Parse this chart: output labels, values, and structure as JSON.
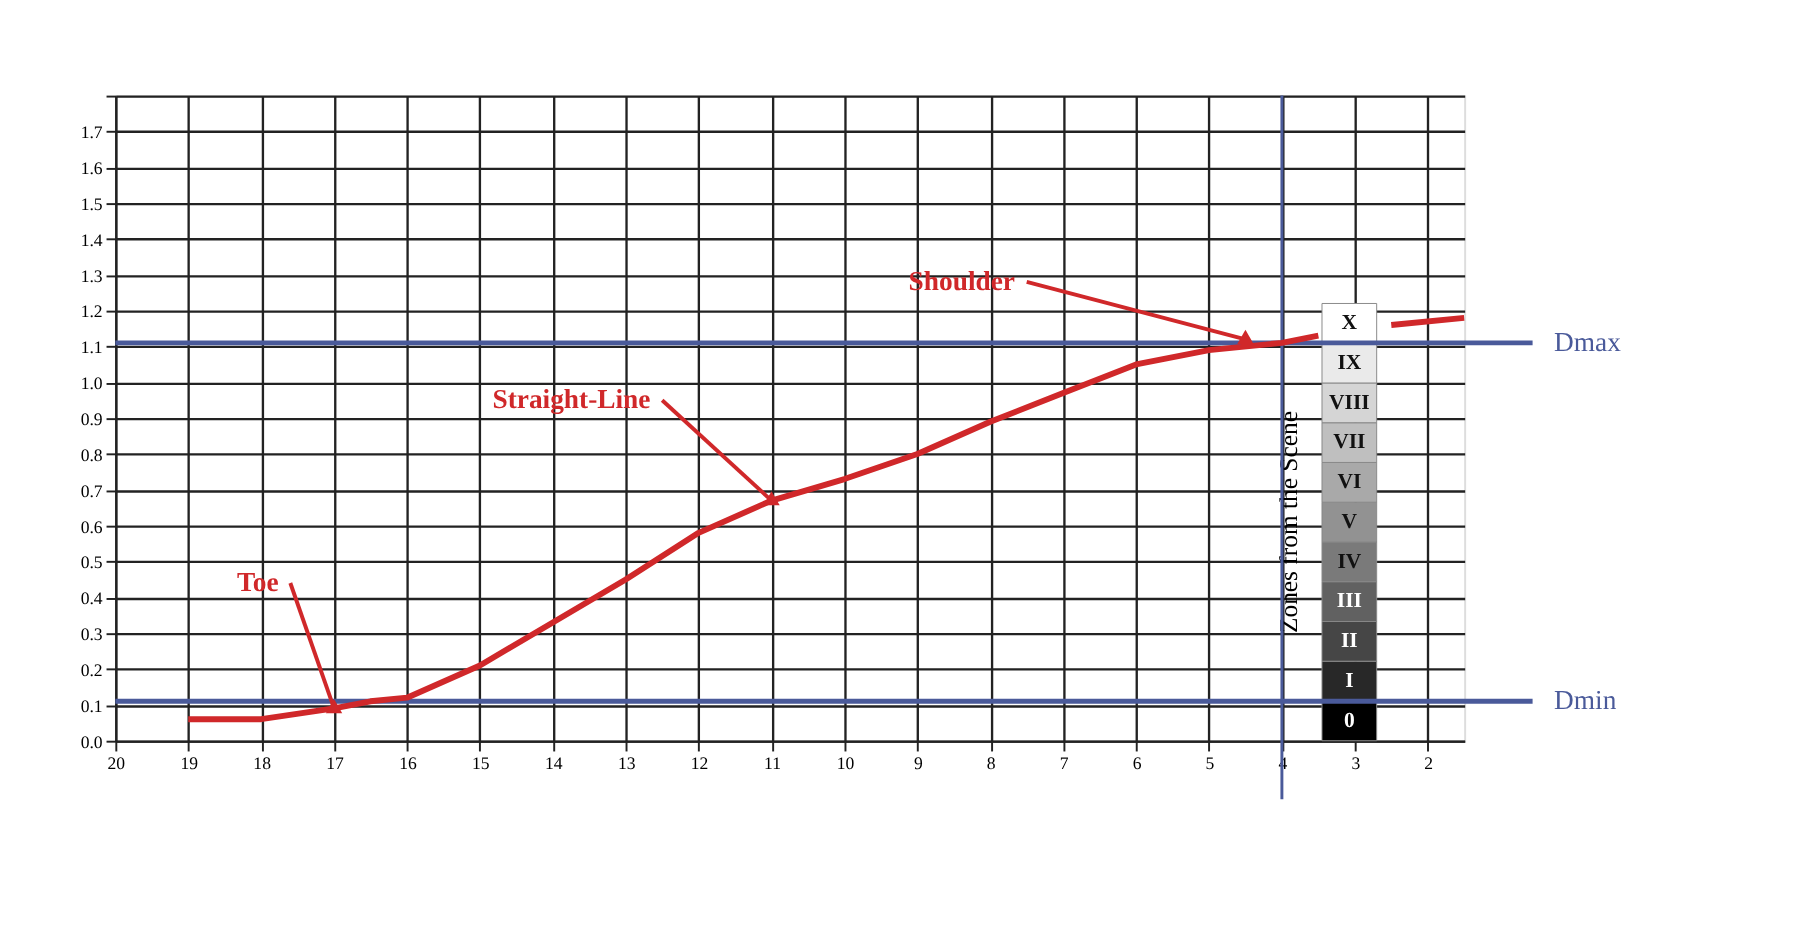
{
  "chart_data": {
    "type": "line",
    "x": [
      19,
      18,
      17,
      16.5,
      16,
      15,
      14,
      13,
      12,
      11,
      10,
      9,
      8,
      7,
      6,
      5,
      4,
      3.5,
      3,
      2.5,
      1.5
    ],
    "series": [
      {
        "color": "#d0282a",
        "values": [
          0.06,
          0.06,
          0.09,
          0.11,
          0.12,
          0.21,
          0.33,
          0.45,
          0.58,
          0.67,
          0.73,
          0.8,
          0.89,
          0.97,
          1.05,
          1.09,
          1.11,
          1.13,
          null,
          1.16,
          1.18
        ]
      }
    ],
    "xlim": [
      20,
      1.5
    ],
    "xticks": [
      20,
      19,
      18,
      17,
      16,
      15,
      14,
      13,
      12,
      11,
      10,
      9,
      8,
      7,
      6,
      5,
      4,
      3,
      2
    ],
    "ylim": [
      0,
      1.8
    ],
    "yticks": [
      {
        "value": 0,
        "label": "0.0"
      },
      0.1,
      0.2,
      0.3,
      0.4,
      0.5,
      0.6,
      0.7,
      0.8,
      0.9,
      {
        "value": 1,
        "label": "1.0"
      },
      1.1,
      1.2,
      1.3,
      1.4,
      1.5,
      1.6,
      1.7,
      {
        "value": 1.8,
        "label": null
      }
    ],
    "grid": true,
    "line_style": "solid",
    "marker": "none",
    "ref_lines": [
      {
        "axis": "y",
        "value": 0.11,
        "label": "Dmin",
        "color": "#4a5a9a"
      },
      {
        "axis": "y",
        "value": 1.11,
        "label": "Dmax",
        "color": "#4a5a9a"
      },
      {
        "axis": "x",
        "value": 4,
        "color": "#4a5a9a"
      }
    ],
    "annotations": [
      {
        "text": "Toe",
        "x": 17,
        "y": 0.09
      },
      {
        "text": "Straight-Line",
        "x": 11,
        "y": 0.67
      },
      {
        "text": "Shoulder",
        "x": 4.5,
        "y": 1.12
      },
      "Zones from the Scene",
      "0",
      "I",
      "II",
      "III",
      "IV",
      "V",
      "VI",
      "VII",
      "VIII",
      "IX",
      "X"
    ]
  }
}
